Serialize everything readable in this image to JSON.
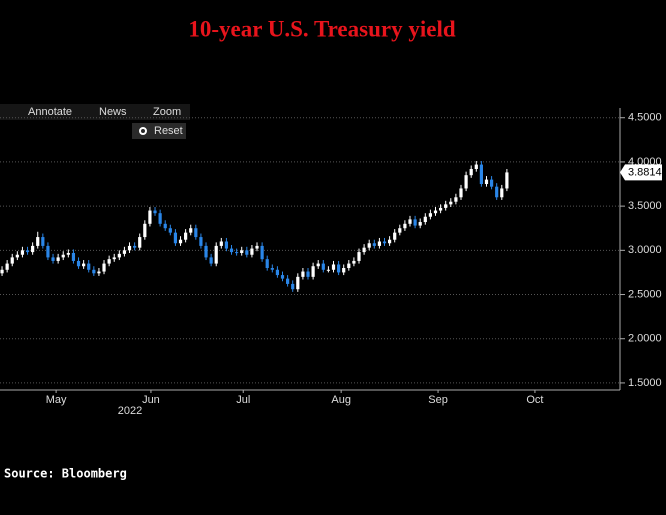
{
  "chart_data": {
    "type": "candlestick",
    "title": "10-year U.S. Treasury yield",
    "source": "Source: Bloomberg",
    "year_label": "2022",
    "toolbar": [
      "Annotate",
      "News",
      "Zoom",
      "Reset"
    ],
    "open": [
      2.74,
      2.78,
      2.85,
      2.92,
      2.95,
      3.0,
      2.98,
      3.05,
      3.15,
      3.05,
      2.92,
      2.88,
      2.92,
      2.95,
      2.97,
      2.88,
      2.82,
      2.85,
      2.78,
      2.74,
      2.76,
      2.85,
      2.9,
      2.92,
      2.96,
      3.0,
      3.05,
      3.03,
      3.15,
      3.3,
      3.45,
      3.42,
      3.3,
      3.25,
      3.2,
      3.08,
      3.12,
      3.2,
      3.25,
      3.15,
      3.05,
      2.92,
      2.85,
      3.05,
      3.1,
      3.02,
      2.98,
      2.97,
      3.0,
      2.95,
      3.02,
      3.05,
      2.9,
      2.8,
      2.78,
      2.72,
      2.68,
      2.62,
      2.56,
      2.7,
      2.76,
      2.7,
      2.82,
      2.85,
      2.78,
      2.78,
      2.84,
      2.75,
      2.8,
      2.85,
      2.88,
      2.98,
      3.03,
      3.08,
      3.05,
      3.1,
      3.08,
      3.12,
      3.2,
      3.25,
      3.3,
      3.35,
      3.28,
      3.32,
      3.38,
      3.42,
      3.45,
      3.48,
      3.52,
      3.55,
      3.6,
      3.7,
      3.85,
      3.92,
      3.97,
      3.75,
      3.8,
      3.72,
      3.6,
      3.7
    ],
    "high": [
      2.82,
      2.89,
      2.96,
      2.99,
      3.04,
      3.04,
      3.09,
      3.21,
      3.19,
      3.09,
      2.96,
      2.96,
      2.99,
      3.01,
      3.01,
      2.92,
      2.89,
      2.89,
      2.82,
      2.8,
      2.89,
      2.94,
      2.96,
      3.0,
      3.04,
      3.09,
      3.09,
      3.19,
      3.34,
      3.49,
      3.49,
      3.46,
      3.34,
      3.29,
      3.24,
      3.16,
      3.24,
      3.29,
      3.29,
      3.19,
      3.09,
      2.96,
      3.09,
      3.14,
      3.14,
      3.06,
      3.02,
      3.04,
      3.04,
      3.06,
      3.09,
      3.09,
      2.94,
      2.84,
      2.82,
      2.76,
      2.72,
      2.66,
      2.74,
      2.8,
      2.8,
      2.86,
      2.89,
      2.89,
      2.82,
      2.88,
      2.88,
      2.84,
      2.89,
      2.92,
      3.02,
      3.07,
      3.12,
      3.12,
      3.14,
      3.14,
      3.16,
      3.24,
      3.29,
      3.34,
      3.39,
      3.39,
      3.36,
      3.42,
      3.46,
      3.49,
      3.52,
      3.56,
      3.59,
      3.64,
      3.74,
      3.89,
      3.96,
      4.01,
      4.01,
      3.84,
      3.84,
      3.76,
      3.74,
      3.92
    ],
    "low": [
      2.71,
      2.75,
      2.82,
      2.89,
      2.92,
      2.95,
      2.95,
      3.02,
      3.02,
      2.89,
      2.85,
      2.85,
      2.89,
      2.92,
      2.85,
      2.79,
      2.79,
      2.75,
      2.71,
      2.71,
      2.73,
      2.82,
      2.87,
      2.89,
      2.93,
      2.97,
      3.0,
      3.0,
      3.12,
      3.27,
      3.39,
      3.27,
      3.22,
      3.17,
      3.05,
      3.05,
      3.09,
      3.17,
      3.12,
      3.02,
      2.89,
      2.82,
      2.82,
      3.02,
      2.99,
      2.95,
      2.94,
      2.94,
      2.92,
      2.92,
      2.99,
      2.87,
      2.77,
      2.75,
      2.69,
      2.65,
      2.59,
      2.53,
      2.53,
      2.67,
      2.67,
      2.67,
      2.79,
      2.75,
      2.75,
      2.75,
      2.72,
      2.72,
      2.77,
      2.82,
      2.85,
      2.95,
      3.0,
      3.02,
      3.02,
      3.05,
      3.05,
      3.09,
      3.17,
      3.22,
      3.27,
      3.25,
      3.25,
      3.29,
      3.35,
      3.39,
      3.42,
      3.45,
      3.49,
      3.52,
      3.57,
      3.67,
      3.82,
      3.89,
      3.72,
      3.72,
      3.69,
      3.57,
      3.57,
      3.67
    ],
    "close": [
      2.78,
      2.85,
      2.92,
      2.95,
      3.0,
      2.98,
      3.05,
      3.15,
      3.05,
      2.92,
      2.88,
      2.92,
      2.95,
      2.97,
      2.88,
      2.82,
      2.85,
      2.78,
      2.74,
      2.76,
      2.85,
      2.9,
      2.92,
      2.96,
      3.0,
      3.05,
      3.03,
      3.15,
      3.3,
      3.45,
      3.42,
      3.3,
      3.25,
      3.2,
      3.08,
      3.12,
      3.2,
      3.25,
      3.15,
      3.05,
      2.92,
      2.85,
      3.05,
      3.1,
      3.02,
      2.98,
      2.97,
      3.0,
      2.95,
      3.02,
      3.05,
      2.9,
      2.8,
      2.78,
      2.72,
      2.68,
      2.62,
      2.56,
      2.7,
      2.76,
      2.7,
      2.82,
      2.85,
      2.78,
      2.78,
      2.84,
      2.75,
      2.8,
      2.85,
      2.88,
      2.98,
      3.03,
      3.08,
      3.05,
      3.1,
      3.08,
      3.12,
      3.2,
      3.25,
      3.3,
      3.35,
      3.28,
      3.32,
      3.38,
      3.42,
      3.45,
      3.48,
      3.52,
      3.55,
      3.6,
      3.7,
      3.85,
      3.92,
      3.97,
      3.75,
      3.8,
      3.72,
      3.6,
      3.7,
      3.8814
    ],
    "up_color": "#ffffff",
    "down_color": "#2a86e8",
    "ylim": [
      1.42,
      4.61
    ],
    "yticks": [
      {
        "value": 1.5,
        "label": "1.5000"
      },
      {
        "value": 2,
        "label": "2.0000"
      },
      {
        "value": 2.5,
        "label": "2.5000"
      },
      {
        "value": 3,
        "label": "3.0000"
      },
      {
        "value": 3.5,
        "label": "3.5000"
      },
      {
        "value": 4,
        "label": "4.0000"
      },
      {
        "value": 4.5,
        "label": "4.5000"
      }
    ],
    "xlim": [
      -0.4,
      120.2
    ],
    "xticks": [
      {
        "value": 10.6,
        "label": "May"
      },
      {
        "value": 29.2,
        "label": "Jun"
      },
      {
        "value": 47.3,
        "label": "Jul"
      },
      {
        "value": 66.5,
        "label": "Aug"
      },
      {
        "value": 85.5,
        "label": "Sep"
      },
      {
        "value": 104.5,
        "label": "Oct"
      }
    ],
    "grid": true
  }
}
